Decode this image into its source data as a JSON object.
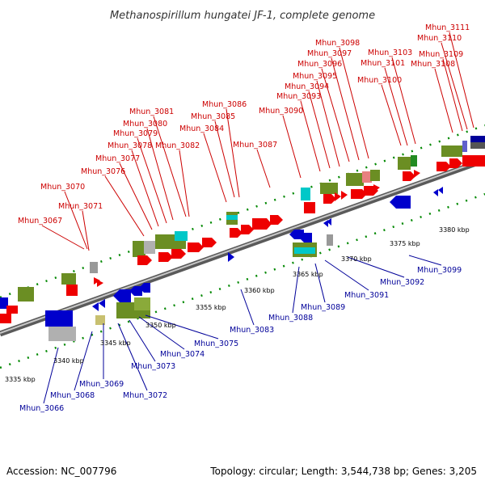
{
  "title": "Methanospirillum hungatei JF-1, complete genome",
  "footer": {
    "accession": "Accession: NC_007796",
    "summary": "Topology: circular; Length: 3,544,738 bp; Genes: 3,205"
  },
  "colors": {
    "forward": "#ee0000",
    "reverse": "#0000cc",
    "cluster_green": "#6b8e23",
    "cluster_cyan": "#00c8c8",
    "cluster_gray": "#b0b0b0",
    "cluster_tan": "#c8c070",
    "label_top": "#cc0000",
    "label_bottom": "#000099",
    "backbone": "#909090"
  },
  "scale": {
    "ticks": [
      {
        "label": "3335 kbp"
      },
      {
        "label": "3340 kbp"
      },
      {
        "label": "3345 kbp"
      },
      {
        "label": "3350 kbp"
      },
      {
        "label": "3355 kbp"
      },
      {
        "label": "3360 kbp"
      },
      {
        "label": "3365 kbp"
      },
      {
        "label": "3370 kbp"
      },
      {
        "label": "3375 kbp"
      },
      {
        "label": "3380 kbp"
      }
    ]
  },
  "genes_top": [
    "Mhun_3067",
    "Mhun_3070",
    "Mhun_3071",
    "Mhun_3076",
    "Mhun_3077",
    "Mhun_3078",
    "Mhun_3079",
    "Mhun_3080",
    "Mhun_3081",
    "Mhun_3082",
    "Mhun_3084",
    "Mhun_3085",
    "Mhun_3086",
    "Mhun_3087",
    "Mhun_3090",
    "Mhun_3093",
    "Mhun_3094",
    "Mhun_3095",
    "Mhun_3096",
    "Mhun_3097",
    "Mhun_3098",
    "Mhun_3100",
    "Mhun_3101",
    "Mhun_3103",
    "Mhun_3108",
    "Mhun_3109",
    "Mhun_3110",
    "Mhun_3111"
  ],
  "genes_bottom": [
    "Mhun_3066",
    "Mhun_3068",
    "Mhun_3069",
    "Mhun_3072",
    "Mhun_3073",
    "Mhun_3074",
    "Mhun_3075",
    "Mhun_3083",
    "Mhun_3088",
    "Mhun_3089",
    "Mhun_3091",
    "Mhun_3092",
    "Mhun_3099"
  ]
}
